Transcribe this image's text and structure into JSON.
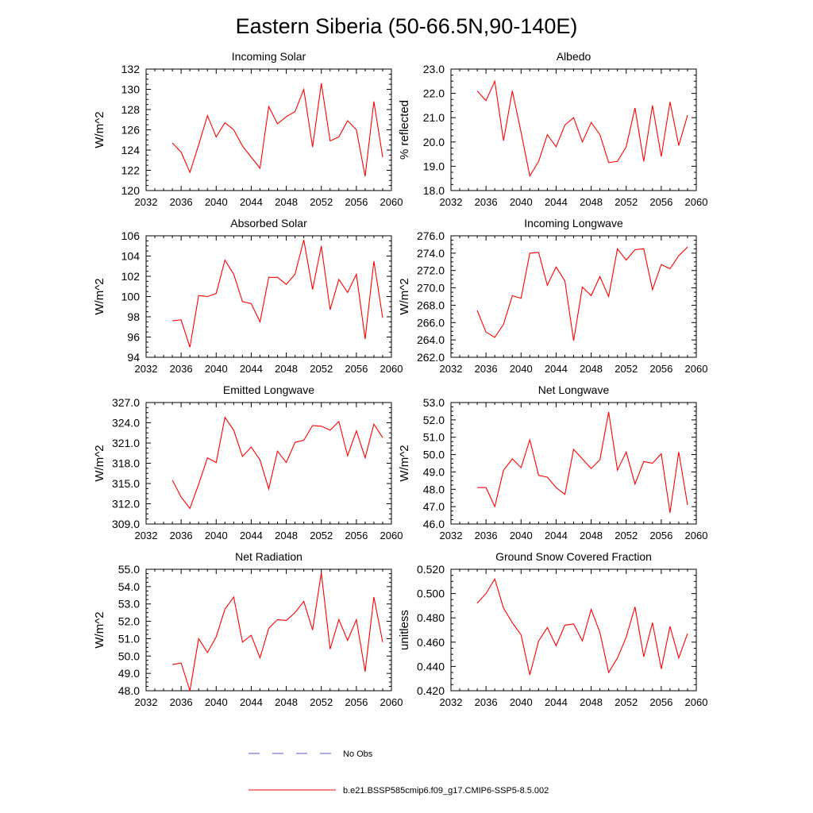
{
  "figure": {
    "title": "Eastern Siberia (50-66.5N,90-140E)",
    "series_color": "#ff0000",
    "obs_color": "#5555cc"
  },
  "legend": {
    "obs_label": "No Obs",
    "model_label": "b.e21.BSSP585cmip6.f09_g17.CMIP6-SSP5-8.5.002"
  },
  "chart_data": [
    {
      "type": "line",
      "title": "Incoming Solar",
      "ylabel": "W/m^2",
      "xlim": [
        2032,
        2060
      ],
      "xticks": [
        "2032",
        "2036",
        "2040",
        "2044",
        "2048",
        "2052",
        "2056",
        "2060"
      ],
      "ylim": [
        120,
        132
      ],
      "yticks": [
        "120",
        "122",
        "124",
        "126",
        "128",
        "130",
        "132"
      ],
      "x": [
        2035,
        2036,
        2037,
        2038,
        2039,
        2040,
        2041,
        2042,
        2043,
        2044,
        2045,
        2046,
        2047,
        2048,
        2049,
        2050,
        2051,
        2052,
        2053,
        2054,
        2055,
        2056,
        2057,
        2058,
        2059
      ],
      "series": [
        {
          "values": [
            124.7,
            123.8,
            121.8,
            124.5,
            127.4,
            125.3,
            126.7,
            126.0,
            124.4,
            123.3,
            122.2,
            128.3,
            126.6,
            127.3,
            127.8,
            130.0,
            124.3,
            130.6,
            124.9,
            125.3,
            126.9,
            126.0,
            121.4,
            128.8,
            123.3
          ]
        }
      ]
    },
    {
      "type": "line",
      "title": "Albedo",
      "ylabel": "% reflected",
      "xlim": [
        2032,
        2060
      ],
      "xticks": [
        "2032",
        "2036",
        "2040",
        "2044",
        "2048",
        "2052",
        "2056",
        "2060"
      ],
      "ylim": [
        18.0,
        23.0
      ],
      "yticks": [
        "18.0",
        "19.0",
        "20.0",
        "21.0",
        "22.0",
        "23.0"
      ],
      "x": [
        2035,
        2036,
        2037,
        2038,
        2039,
        2040,
        2041,
        2042,
        2043,
        2044,
        2045,
        2046,
        2047,
        2048,
        2049,
        2050,
        2051,
        2052,
        2053,
        2054,
        2055,
        2056,
        2057,
        2058,
        2059
      ],
      "series": [
        {
          "values": [
            22.1,
            21.7,
            22.5,
            20.05,
            22.1,
            20.4,
            18.6,
            19.2,
            20.3,
            19.8,
            20.7,
            21.0,
            20.0,
            20.8,
            20.3,
            19.15,
            19.2,
            19.8,
            21.4,
            19.2,
            21.5,
            19.4,
            21.65,
            19.85,
            21.1
          ]
        }
      ]
    },
    {
      "type": "line",
      "title": "Absorbed Solar",
      "ylabel": "W/m^2",
      "xlim": [
        2032,
        2060
      ],
      "xticks": [
        "2032",
        "2036",
        "2040",
        "2044",
        "2048",
        "2052",
        "2056",
        "2060"
      ],
      "ylim": [
        94,
        106
      ],
      "yticks": [
        "94",
        "96",
        "98",
        "100",
        "102",
        "104",
        "106"
      ],
      "x": [
        2035,
        2036,
        2037,
        2038,
        2039,
        2040,
        2041,
        2042,
        2043,
        2044,
        2045,
        2046,
        2047,
        2048,
        2049,
        2050,
        2051,
        2052,
        2053,
        2054,
        2055,
        2056,
        2057,
        2058,
        2059
      ],
      "series": [
        {
          "values": [
            97.6,
            97.7,
            95.0,
            100.1,
            100.0,
            100.3,
            103.6,
            102.2,
            99.5,
            99.3,
            97.5,
            101.9,
            101.9,
            101.2,
            102.2,
            105.6,
            100.7,
            105.0,
            98.7,
            101.7,
            100.4,
            102.2,
            95.8,
            103.5,
            97.9
          ]
        }
      ]
    },
    {
      "type": "line",
      "title": "Incoming Longwave",
      "ylabel": "W/m^2",
      "xlim": [
        2032,
        2060
      ],
      "xticks": [
        "2032",
        "2036",
        "2040",
        "2044",
        "2048",
        "2052",
        "2056",
        "2060"
      ],
      "ylim": [
        262.0,
        276.0
      ],
      "yticks": [
        "262.0",
        "264.0",
        "266.0",
        "268.0",
        "270.0",
        "272.0",
        "274.0",
        "276.0"
      ],
      "x": [
        2035,
        2036,
        2037,
        2038,
        2039,
        2040,
        2041,
        2042,
        2043,
        2044,
        2045,
        2046,
        2047,
        2048,
        2049,
        2050,
        2051,
        2052,
        2053,
        2054,
        2055,
        2056,
        2057,
        2058,
        2059
      ],
      "series": [
        {
          "values": [
            267.4,
            264.9,
            264.3,
            265.8,
            269.1,
            268.8,
            274.0,
            274.1,
            270.3,
            272.4,
            270.8,
            263.9,
            270.1,
            269.1,
            271.3,
            269.0,
            274.5,
            273.2,
            274.4,
            274.5,
            269.8,
            272.7,
            272.2,
            273.7,
            274.7
          ]
        }
      ]
    },
    {
      "type": "line",
      "title": "Emitted Longwave",
      "ylabel": "W/m^2",
      "xlim": [
        2032,
        2060
      ],
      "xticks": [
        "2032",
        "2036",
        "2040",
        "2044",
        "2048",
        "2052",
        "2056",
        "2060"
      ],
      "ylim": [
        309.0,
        327.0
      ],
      "yticks": [
        "309.0",
        "312.0",
        "315.0",
        "318.0",
        "321.0",
        "324.0",
        "327.0"
      ],
      "x": [
        2035,
        2036,
        2037,
        2038,
        2039,
        2040,
        2041,
        2042,
        2043,
        2044,
        2045,
        2046,
        2047,
        2048,
        2049,
        2050,
        2051,
        2052,
        2053,
        2054,
        2055,
        2056,
        2057,
        2058,
        2059
      ],
      "series": [
        {
          "values": [
            315.5,
            313.0,
            311.3,
            314.9,
            318.8,
            318.1,
            324.8,
            322.9,
            319.0,
            320.4,
            318.5,
            314.2,
            319.8,
            318.1,
            321.1,
            321.4,
            323.6,
            323.5,
            322.9,
            324.2,
            319.1,
            322.8,
            318.8,
            323.8,
            321.8
          ]
        }
      ]
    },
    {
      "type": "line",
      "title": "Net Longwave",
      "ylabel": "W/m^2",
      "xlim": [
        2032,
        2060
      ],
      "xticks": [
        "2032",
        "2036",
        "2040",
        "2044",
        "2048",
        "2052",
        "2056",
        "2060"
      ],
      "ylim": [
        46.0,
        53.0
      ],
      "yticks": [
        "46.0",
        "47.0",
        "48.0",
        "49.0",
        "50.0",
        "51.0",
        "52.0",
        "53.0"
      ],
      "x": [
        2035,
        2036,
        2037,
        2038,
        2039,
        2040,
        2041,
        2042,
        2043,
        2044,
        2045,
        2046,
        2047,
        2048,
        2049,
        2050,
        2051,
        2052,
        2053,
        2054,
        2055,
        2056,
        2057,
        2058,
        2059
      ],
      "series": [
        {
          "values": [
            48.1,
            48.1,
            47.0,
            49.1,
            49.75,
            49.25,
            50.85,
            48.8,
            48.7,
            48.1,
            47.7,
            50.3,
            49.75,
            49.2,
            49.7,
            52.45,
            49.1,
            50.15,
            48.3,
            49.6,
            49.5,
            50.05,
            46.65,
            50.15,
            47.1
          ]
        }
      ]
    },
    {
      "type": "line",
      "title": "Net Radiation",
      "ylabel": "W/m^2",
      "xlim": [
        2032,
        2060
      ],
      "xticks": [
        "2032",
        "2036",
        "2040",
        "2044",
        "2048",
        "2052",
        "2056",
        "2060"
      ],
      "ylim": [
        48.0,
        55.0
      ],
      "yticks": [
        "48.0",
        "49.0",
        "50.0",
        "51.0",
        "52.0",
        "53.0",
        "54.0",
        "55.0"
      ],
      "x": [
        2035,
        2036,
        2037,
        2038,
        2039,
        2040,
        2041,
        2042,
        2043,
        2044,
        2045,
        2046,
        2047,
        2048,
        2049,
        2050,
        2051,
        2052,
        2053,
        2054,
        2055,
        2056,
        2057,
        2058,
        2059
      ],
      "series": [
        {
          "values": [
            49.5,
            49.6,
            48.0,
            51.0,
            50.2,
            51.1,
            52.7,
            53.4,
            50.8,
            51.2,
            49.9,
            51.6,
            52.1,
            52.05,
            52.5,
            53.15,
            51.5,
            54.8,
            50.4,
            52.1,
            50.9,
            52.1,
            49.1,
            53.4,
            50.8
          ]
        }
      ]
    },
    {
      "type": "line",
      "title": "Ground Snow Covered Fraction",
      "ylabel": "unitless",
      "xlim": [
        2032,
        2060
      ],
      "xticks": [
        "2032",
        "2036",
        "2040",
        "2044",
        "2048",
        "2052",
        "2056",
        "2060"
      ],
      "ylim": [
        0.42,
        0.52
      ],
      "yticks": [
        "0.420",
        "0.440",
        "0.460",
        "0.480",
        "0.500",
        "0.520"
      ],
      "x": [
        2035,
        2036,
        2037,
        2038,
        2039,
        2040,
        2041,
        2042,
        2043,
        2044,
        2045,
        2046,
        2047,
        2048,
        2049,
        2050,
        2051,
        2052,
        2053,
        2054,
        2055,
        2056,
        2057,
        2058,
        2059
      ],
      "series": [
        {
          "values": [
            0.492,
            0.5,
            0.512,
            0.488,
            0.476,
            0.466,
            0.433,
            0.461,
            0.472,
            0.457,
            0.474,
            0.475,
            0.461,
            0.487,
            0.468,
            0.435,
            0.447,
            0.464,
            0.489,
            0.448,
            0.476,
            0.438,
            0.473,
            0.447,
            0.467
          ]
        }
      ]
    }
  ]
}
